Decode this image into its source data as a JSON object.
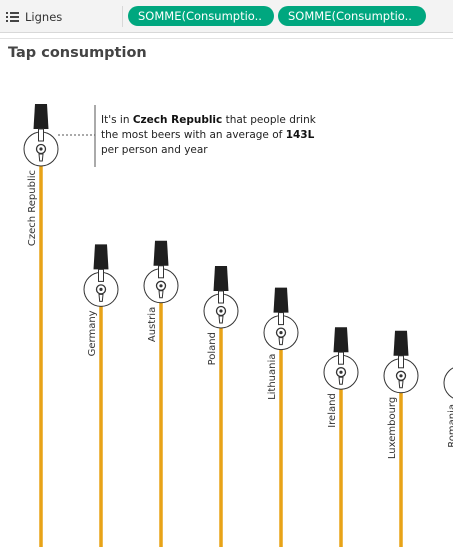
{
  "toolbar": {
    "rows_shelf": {
      "icon": "list-rows-icon",
      "label": "Lignes"
    },
    "pills": [
      "SOMME(Consumptio..",
      "SOMME(Consumptio.."
    ]
  },
  "sheet": {
    "title": "Tap consumption"
  },
  "annotation": {
    "intro": "It's in ",
    "country": "Czech Republic",
    "middle": " that people drink the most beers with an average of ",
    "value": "143L",
    "outro": " per person and year"
  },
  "colors": {
    "beer_line": "#e8a317",
    "tap_handle": "#1f1f1f",
    "pill": "#00a77f"
  },
  "chart_data": {
    "type": "lollipop",
    "title": "Tap consumption",
    "categories": [
      "Czech Republic",
      "Germany",
      "Austria",
      "Poland",
      "Lithuania",
      "Ireland",
      "Luxembourg",
      "Romania"
    ],
    "values": [
      143,
      104,
      105,
      98,
      92,
      81,
      80,
      78
    ],
    "unit": "L per person and year",
    "marker": "beer-tap-icon"
  }
}
